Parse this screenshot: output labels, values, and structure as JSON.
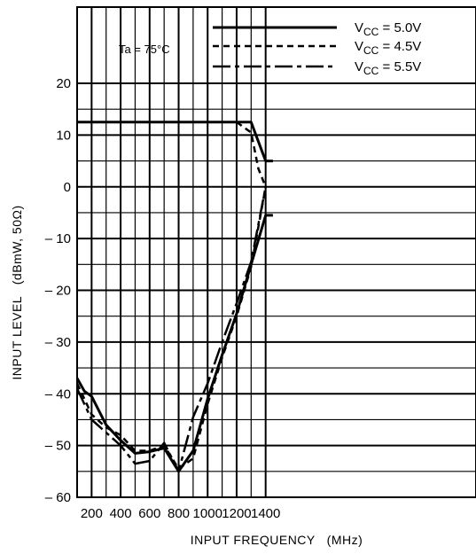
{
  "chart_data": {
    "type": "line",
    "title": "",
    "xlabel": "INPUT FREQUENCY   (MHz)",
    "ylabel": "INPUT LEVEL   (dBmW, 50Ω)",
    "xlim": [
      100,
      1400
    ],
    "ylim": [
      -60,
      20
    ],
    "x_ticks": [
      200,
      400,
      600,
      800,
      1000,
      1200,
      1400
    ],
    "x_tick_labels": [
      "200",
      "400",
      "600",
      "800",
      "1000",
      "1200",
      "1400"
    ],
    "y_ticks": [
      20,
      10,
      0,
      -10,
      -20,
      -30,
      -40,
      -50,
      -60
    ],
    "y_tick_labels": [
      "20",
      "10",
      "0",
      "– 10",
      "– 20",
      "– 30",
      "– 40",
      "– 50",
      "– 60"
    ],
    "grid": true,
    "legend_position": "top-right",
    "annotation": "Ta = 75°C",
    "legend": [
      {
        "prefix": "V",
        "sub": "CC",
        "suffix": " = 5.0V",
        "style": "solid"
      },
      {
        "prefix": "V",
        "sub": "CC",
        "suffix": " = 4.5V",
        "style": "dashed"
      },
      {
        "prefix": "V",
        "sub": "CC",
        "suffix": " = 5.5V",
        "style": "dashdot"
      }
    ],
    "series": [
      {
        "style": "solid",
        "points": [
          [
            100,
            12.5
          ],
          [
            1300,
            12.5
          ],
          [
            1400,
            5
          ],
          [
            1450,
            5
          ]
        ]
      },
      {
        "style": "solid",
        "points": [
          [
            100,
            -37
          ],
          [
            150,
            -39.5
          ],
          [
            200,
            -40.5
          ],
          [
            300,
            -46
          ],
          [
            400,
            -49
          ],
          [
            500,
            -51.5
          ],
          [
            600,
            -51.2
          ],
          [
            700,
            -50.5
          ],
          [
            800,
            -55
          ],
          [
            900,
            -51
          ],
          [
            1000,
            -41
          ],
          [
            1100,
            -32.5
          ],
          [
            1200,
            -24.5
          ],
          [
            1300,
            -15
          ],
          [
            1400,
            -5.5
          ],
          [
            1450,
            -5.5
          ]
        ]
      },
      {
        "style": "dashed",
        "points": [
          [
            100,
            -38
          ],
          [
            200,
            -44
          ],
          [
            300,
            -46.5
          ],
          [
            400,
            -48
          ],
          [
            500,
            -51
          ],
          [
            600,
            -51
          ],
          [
            700,
            -50
          ],
          [
            800,
            -54.5
          ],
          [
            900,
            -52.5
          ],
          [
            1000,
            -42
          ],
          [
            1100,
            -33
          ],
          [
            1200,
            -25
          ],
          [
            1300,
            -15.5
          ],
          [
            1400,
            0
          ]
        ]
      },
      {
        "style": "dashed",
        "points": [
          [
            1200,
            12.5
          ],
          [
            1300,
            10.5
          ],
          [
            1350,
            3.5
          ],
          [
            1400,
            0
          ]
        ]
      },
      {
        "style": "dashdot",
        "points": [
          [
            100,
            -39
          ],
          [
            200,
            -45
          ],
          [
            300,
            -47.5
          ],
          [
            400,
            -50
          ],
          [
            500,
            -53.5
          ],
          [
            600,
            -53
          ],
          [
            700,
            -49.5
          ],
          [
            800,
            -55
          ],
          [
            900,
            -44.5
          ],
          [
            1000,
            -38
          ],
          [
            1100,
            -30
          ],
          [
            1200,
            -22.5
          ],
          [
            1300,
            -14.5
          ],
          [
            1400,
            0
          ]
        ]
      }
    ]
  }
}
